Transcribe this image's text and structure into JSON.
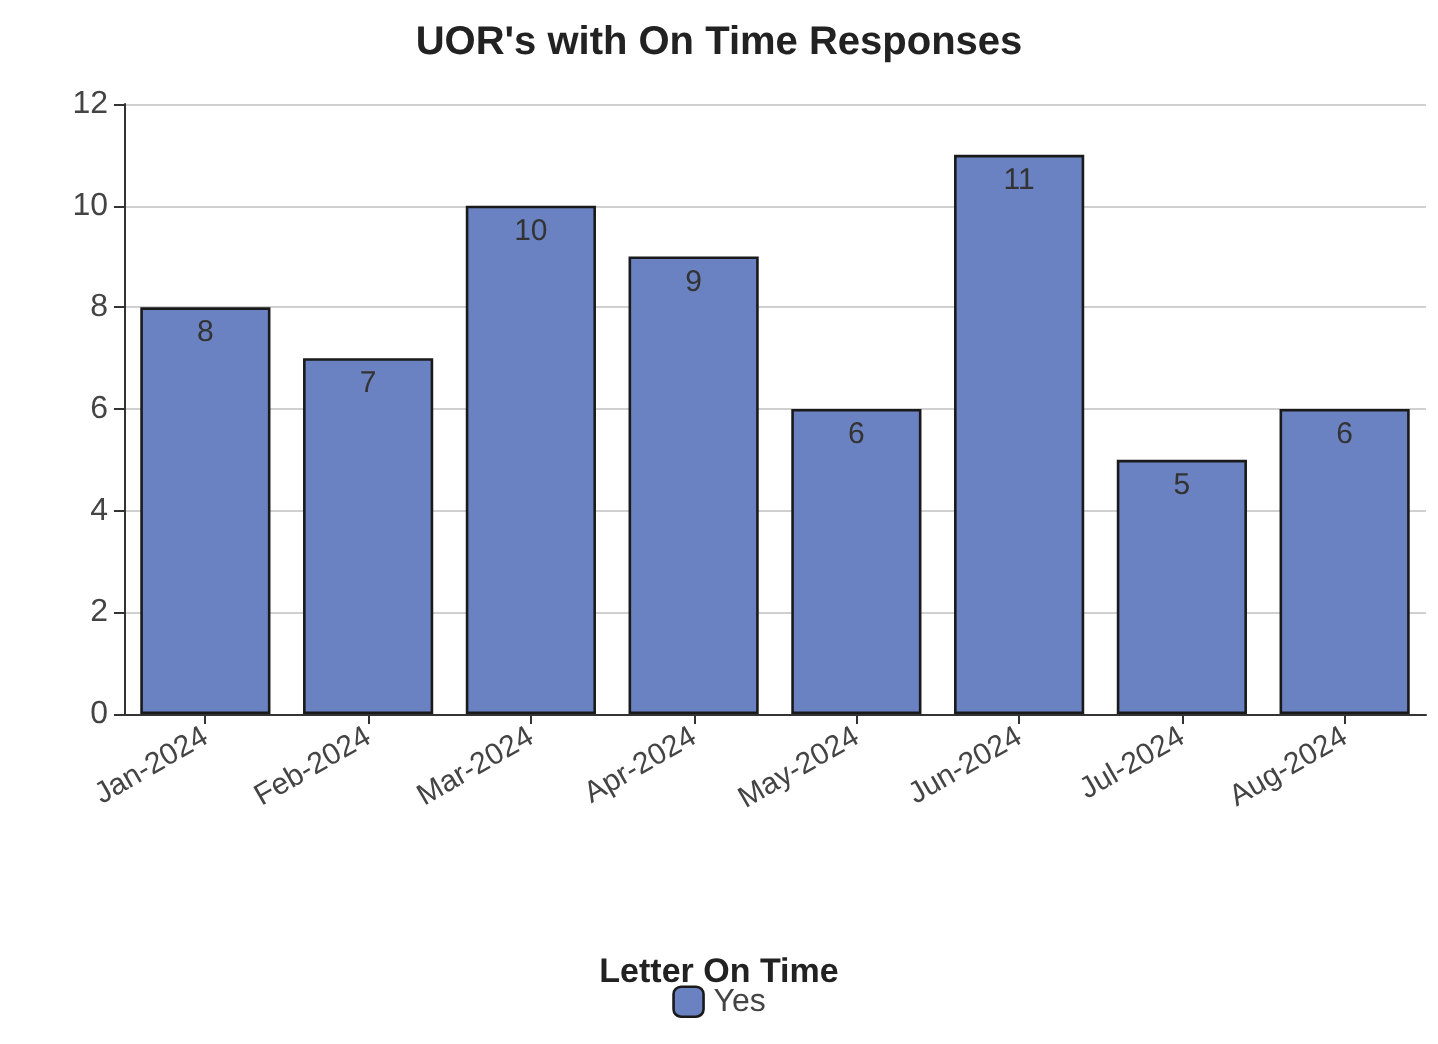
{
  "chart_data": {
    "type": "bar",
    "title": "UOR's with On Time Responses",
    "categories": [
      "Jan-2024",
      "Feb-2024",
      "Mar-2024",
      "Apr-2024",
      "May-2024",
      "Jun-2024",
      "Jul-2024",
      "Aug-2024"
    ],
    "series": [
      {
        "name": "Yes",
        "color": "#6a82c2",
        "values": [
          8,
          7,
          10,
          9,
          6,
          11,
          5,
          6
        ]
      }
    ],
    "ylim": [
      0,
      12
    ],
    "yticks": [
      0,
      2,
      4,
      6,
      8,
      10,
      12
    ],
    "grid": "y",
    "legend": "bottom",
    "legend_title": "Letter On Time",
    "data_labels": true
  }
}
